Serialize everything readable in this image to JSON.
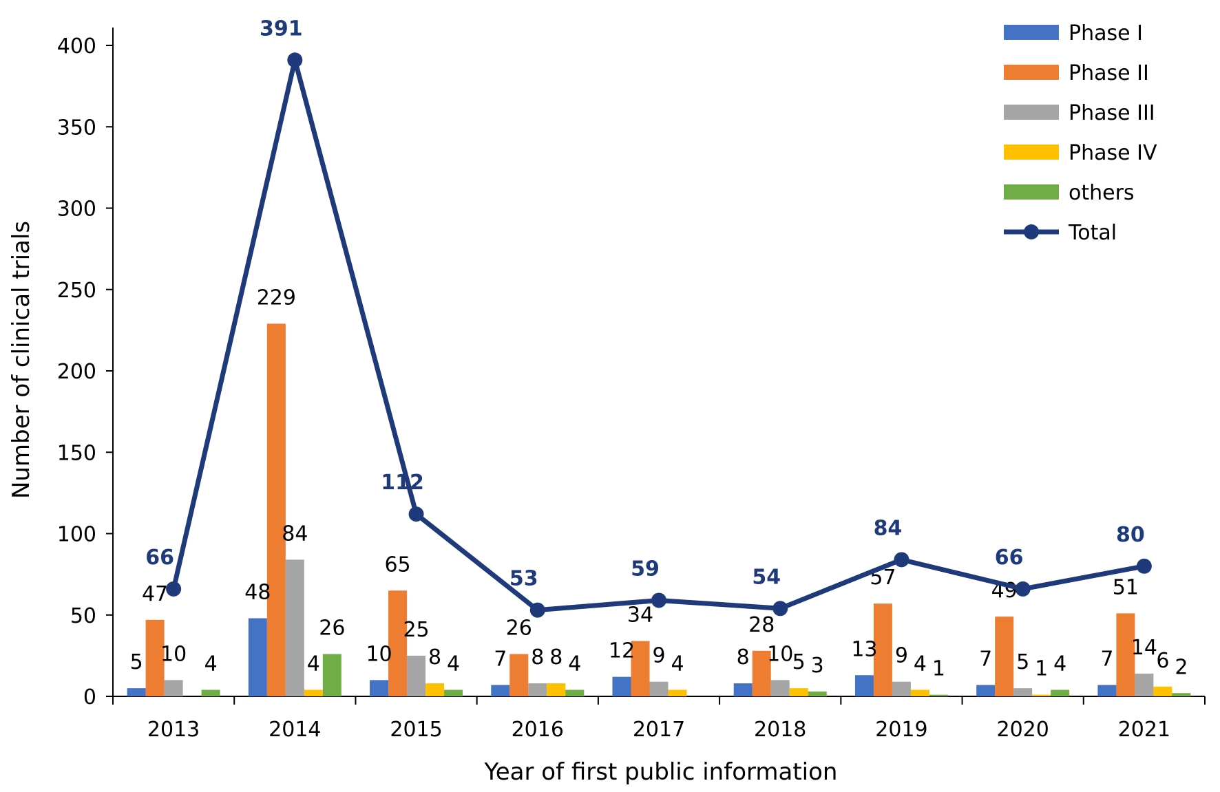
{
  "chart_data": {
    "type": "bar",
    "title": "",
    "xlabel": "Year of first public information",
    "ylabel": "Number of clinical trials",
    "ylim": [
      0,
      400
    ],
    "yticks": [
      0,
      50,
      100,
      150,
      200,
      250,
      300,
      350,
      400
    ],
    "categories": [
      "2013",
      "2014",
      "2015",
      "2016",
      "2017",
      "2018",
      "2019",
      "2020",
      "2021"
    ],
    "series": [
      {
        "name": "Phase I",
        "color": "#4472C4",
        "values": [
          5,
          48,
          10,
          7,
          12,
          8,
          13,
          7,
          7
        ],
        "labels": [
          "5",
          "48",
          "10",
          "7",
          "12",
          "8",
          "13",
          "7",
          "7"
        ]
      },
      {
        "name": "Phase II",
        "color": "#ED7D31",
        "values": [
          47,
          229,
          65,
          26,
          34,
          28,
          57,
          49,
          51
        ],
        "labels": [
          "47",
          "229",
          "65",
          "26",
          "34",
          "28",
          "57",
          "49",
          "51"
        ]
      },
      {
        "name": "Phase III",
        "color": "#A5A5A5",
        "values": [
          10,
          84,
          25,
          8,
          9,
          10,
          9,
          5,
          14
        ],
        "labels": [
          "10",
          "84",
          "25",
          "8",
          "9",
          "10",
          "9",
          "5",
          "14"
        ]
      },
      {
        "name": "Phase IV",
        "color": "#FFC000",
        "values": [
          0,
          4,
          8,
          8,
          4,
          5,
          4,
          1,
          6
        ],
        "labels": [
          "",
          "4",
          "8",
          "8",
          "4",
          "5",
          "4",
          "1",
          "6"
        ]
      },
      {
        "name": "others",
        "color": "#70AD47",
        "values": [
          4,
          26,
          4,
          4,
          0,
          3,
          1,
          4,
          2
        ],
        "labels": [
          "4",
          "26",
          "4",
          "4",
          "",
          "3",
          "1",
          "4",
          "2"
        ]
      }
    ],
    "line_series": {
      "name": "Total",
      "color": "#1F3A7A",
      "values": [
        66,
        391,
        112,
        53,
        59,
        54,
        84,
        66,
        80
      ],
      "labels": [
        "66",
        "391",
        "112",
        "53",
        "59",
        "54",
        "84",
        "66",
        "80"
      ]
    },
    "legend": "top-right",
    "grid": false
  }
}
